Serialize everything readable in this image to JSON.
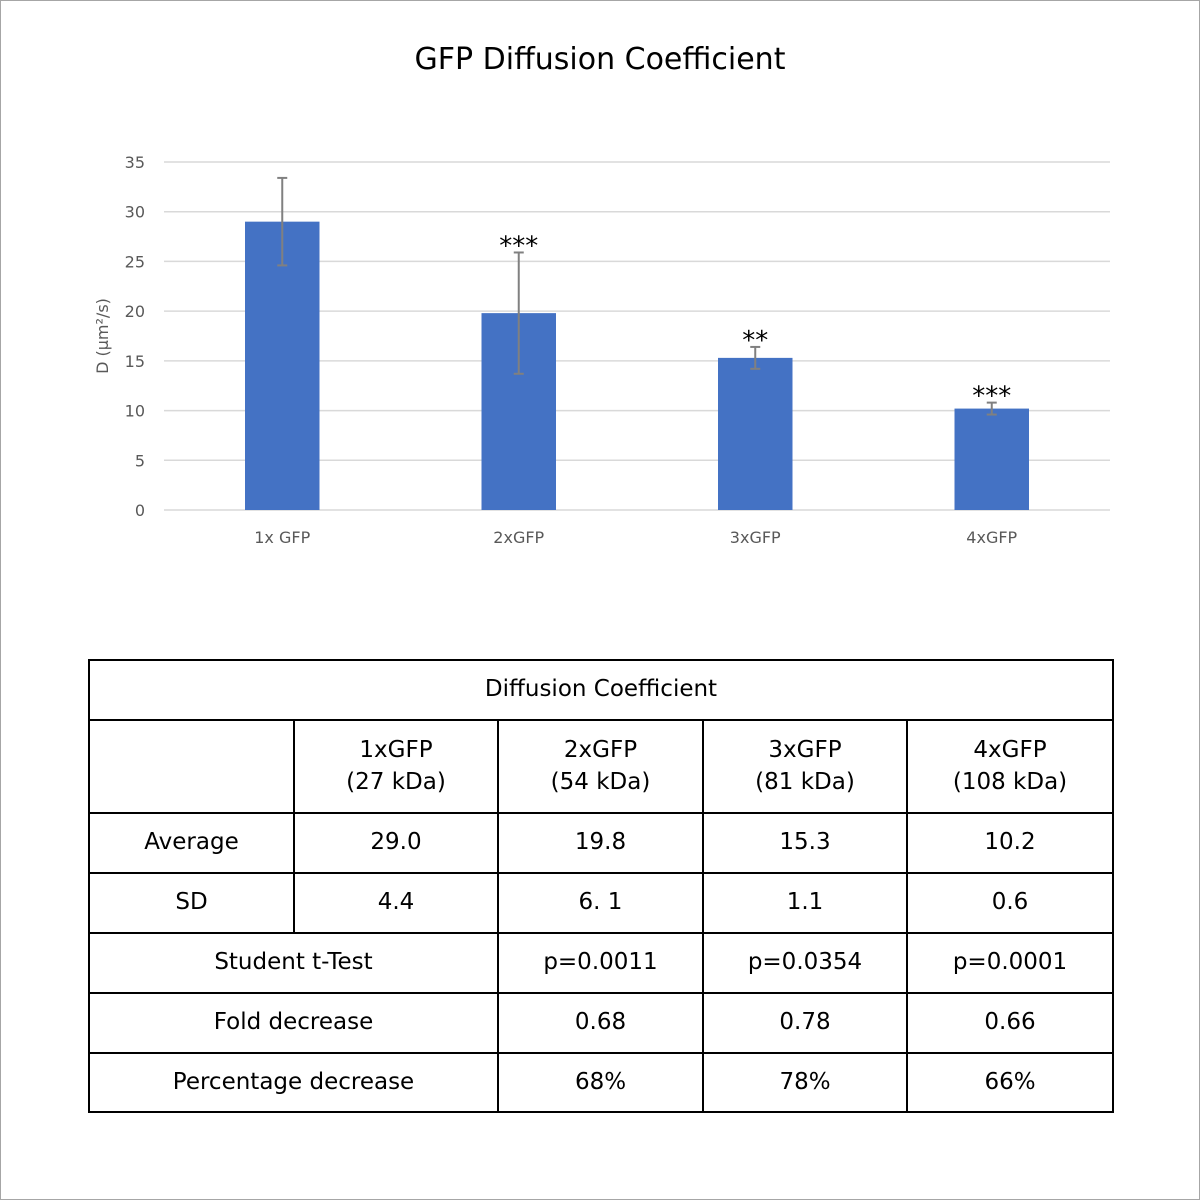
{
  "chart_data": {
    "type": "bar",
    "title": "GFP Diffusion Coefficient",
    "ylabel": "D (µm²/s)",
    "xlabel": "",
    "categories": [
      "1x GFP",
      "2xGFP",
      "3xGFP",
      "4xGFP"
    ],
    "values": [
      29.0,
      19.8,
      15.3,
      10.2
    ],
    "errors": [
      4.4,
      6.1,
      1.1,
      0.6
    ],
    "significance": [
      "",
      "***",
      "**",
      "***"
    ],
    "ylim": [
      0,
      35
    ],
    "yticks": [
      0,
      5,
      10,
      15,
      20,
      25,
      30,
      35
    ],
    "grid": true,
    "legend": false,
    "bar_color": "#4472c4",
    "error_color": "#808080",
    "grid_color": "#d9d9d9"
  },
  "table": {
    "title": "Diffusion Coefficient",
    "headers": [
      {
        "name": "1xGFP",
        "mass": "(27 kDa)"
      },
      {
        "name": "2xGFP",
        "mass": "(54 kDa)"
      },
      {
        "name": "3xGFP",
        "mass": "(81 kDa)"
      },
      {
        "name": "4xGFP",
        "mass": "(108 kDa)"
      }
    ],
    "average": {
      "label": "Average",
      "values": [
        "29.0",
        "19.8",
        "15.3",
        "10.2"
      ]
    },
    "sd": {
      "label": "SD",
      "values": [
        "4.4",
        "6. 1",
        "1.1",
        "0.6"
      ]
    },
    "ttest": {
      "label": "Student t-Test",
      "values": [
        "p=0.0011",
        "p=0.0354",
        "p=0.0001"
      ]
    },
    "fold": {
      "label": "Fold decrease",
      "values": [
        "0.68",
        "0.78",
        "0.66"
      ]
    },
    "percentage": {
      "label": "Percentage decrease",
      "values": [
        "68%",
        "78%",
        "66%"
      ]
    }
  }
}
